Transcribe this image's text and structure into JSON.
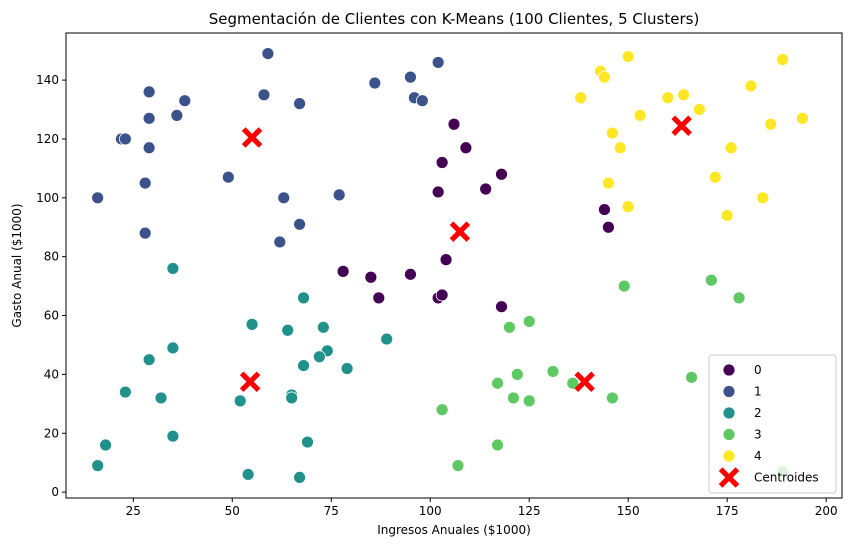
{
  "chart_data": {
    "type": "scatter",
    "title": "Segmentación de Clientes con K-Means (100 Clientes, 5 Clusters)",
    "xlabel": "Ingresos Anuales ($1000)",
    "ylabel": "Gasto Anual ($1000)",
    "xlim": [
      8,
      204
    ],
    "ylim": [
      -2,
      156
    ],
    "xticks": [
      25,
      50,
      75,
      100,
      125,
      150,
      175,
      200
    ],
    "yticks": [
      0,
      20,
      40,
      60,
      80,
      100,
      120,
      140
    ],
    "grid": false,
    "legend_position": "bottom-right",
    "series": [
      {
        "name": "0",
        "color": "#440154",
        "points": [
          [
            106,
            125
          ],
          [
            109,
            117
          ],
          [
            103,
            112
          ],
          [
            102,
            102
          ],
          [
            114,
            103
          ],
          [
            118,
            108
          ],
          [
            144,
            96
          ],
          [
            145,
            90
          ],
          [
            78,
            75
          ],
          [
            85,
            73
          ],
          [
            87,
            66
          ],
          [
            95,
            74
          ],
          [
            104,
            79
          ],
          [
            102,
            66
          ],
          [
            103,
            67
          ],
          [
            118,
            63
          ]
        ]
      },
      {
        "name": "1",
        "color": "#3b528b",
        "points": [
          [
            59,
            149
          ],
          [
            102,
            146
          ],
          [
            95,
            141
          ],
          [
            86,
            139
          ],
          [
            96,
            134
          ],
          [
            98,
            133
          ],
          [
            58,
            135
          ],
          [
            67,
            132
          ],
          [
            29,
            136
          ],
          [
            38,
            133
          ],
          [
            36,
            128
          ],
          [
            29,
            127
          ],
          [
            22,
            120
          ],
          [
            23,
            120
          ],
          [
            29,
            117
          ],
          [
            49,
            107
          ],
          [
            28,
            105
          ],
          [
            16,
            100
          ],
          [
            63,
            100
          ],
          [
            77,
            101
          ],
          [
            67,
            91
          ],
          [
            28,
            88
          ],
          [
            62,
            85
          ]
        ]
      },
      {
        "name": "2",
        "color": "#21918c",
        "points": [
          [
            35,
            76
          ],
          [
            68,
            66
          ],
          [
            55,
            57
          ],
          [
            64,
            55
          ],
          [
            73,
            56
          ],
          [
            89,
            52
          ],
          [
            35,
            49
          ],
          [
            74,
            48
          ],
          [
            72,
            46
          ],
          [
            29,
            45
          ],
          [
            68,
            43
          ],
          [
            79,
            42
          ],
          [
            65,
            33
          ],
          [
            65,
            32
          ],
          [
            23,
            34
          ],
          [
            32,
            32
          ],
          [
            52,
            31
          ],
          [
            35,
            19
          ],
          [
            69,
            17
          ],
          [
            18,
            16
          ],
          [
            16,
            9
          ],
          [
            54,
            6
          ],
          [
            67,
            5
          ]
        ]
      },
      {
        "name": "3",
        "color": "#5ec962",
        "points": [
          [
            149,
            70
          ],
          [
            171,
            72
          ],
          [
            178,
            66
          ],
          [
            125,
            58
          ],
          [
            120,
            56
          ],
          [
            131,
            41
          ],
          [
            122,
            40
          ],
          [
            166,
            39
          ],
          [
            117,
            37
          ],
          [
            136,
            37
          ],
          [
            121,
            32
          ],
          [
            125,
            31
          ],
          [
            146,
            32
          ],
          [
            103,
            28
          ],
          [
            117,
            16
          ],
          [
            107,
            9
          ],
          [
            189,
            7
          ]
        ]
      },
      {
        "name": "4",
        "color": "#fde725",
        "points": [
          [
            150,
            148
          ],
          [
            189,
            147
          ],
          [
            143,
            143
          ],
          [
            144,
            141
          ],
          [
            138,
            134
          ],
          [
            160,
            134
          ],
          [
            164,
            135
          ],
          [
            181,
            138
          ],
          [
            153,
            128
          ],
          [
            168,
            130
          ],
          [
            146,
            122
          ],
          [
            194,
            127
          ],
          [
            186,
            125
          ],
          [
            148,
            117
          ],
          [
            176,
            117
          ],
          [
            172,
            107
          ],
          [
            145,
            105
          ],
          [
            150,
            97
          ],
          [
            184,
            100
          ],
          [
            175,
            94
          ]
        ]
      }
    ],
    "centroids": {
      "name": "Centroides",
      "color": "#ff0000",
      "points": [
        [
          55,
          120.5
        ],
        [
          107.5,
          88.5
        ],
        [
          54.5,
          37.5
        ],
        [
          139,
          37.5
        ],
        [
          163.5,
          124.5
        ]
      ]
    },
    "legend": [
      "0",
      "1",
      "2",
      "3",
      "4",
      "Centroides"
    ]
  }
}
